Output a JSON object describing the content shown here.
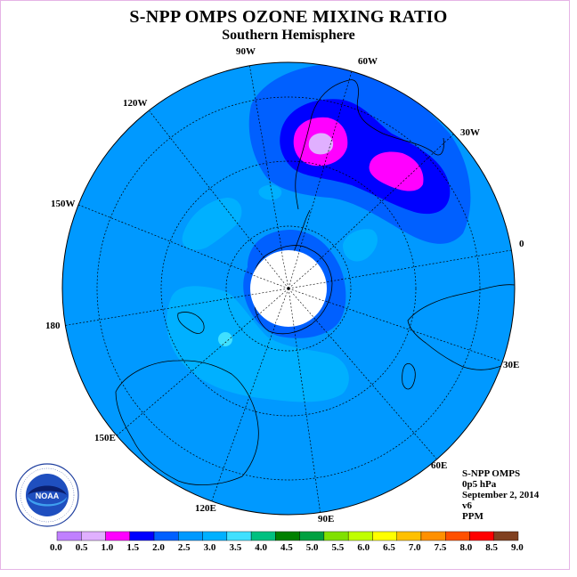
{
  "title": "S-NPP OMPS OZONE MIXING RATIO",
  "subtitle": "Southern Hemisphere",
  "longitude_labels": {
    "lon_90w": "90W",
    "lon_60w": "60W",
    "lon_30w": "30W",
    "lon_0": "0",
    "lon_30e": "30E",
    "lon_60e": "60E",
    "lon_90e": "90E",
    "lon_120e": "120E",
    "lon_150e": "150E",
    "lon_180": "180",
    "lon_150w": "150W",
    "lon_120w": "120W"
  },
  "info": {
    "instrument": "S-NPP OMPS",
    "level": "0p5 hPa",
    "date": "September 2, 2014",
    "version": "v6",
    "units": "PPM"
  },
  "logo": {
    "text": "NOAA",
    "ring_text": "NATIONAL OCEANIC AND ATMOSPHERIC ADMINISTRATION · U.S. DEPARTMENT OF COMMERCE"
  },
  "colorbar": {
    "labels": [
      "0.0",
      "0.5",
      "1.0",
      "1.5",
      "2.0",
      "2.5",
      "3.0",
      "3.5",
      "4.0",
      "4.5",
      "5.0",
      "5.5",
      "6.0",
      "6.5",
      "7.0",
      "7.5",
      "8.0",
      "8.5",
      "9.0"
    ],
    "colors": [
      "#c080ff",
      "#e0b0ff",
      "#ff00ff",
      "#0000ff",
      "#0060ff",
      "#0099ff",
      "#00b0ff",
      "#40e0ff",
      "#00c080",
      "#008000",
      "#00a040",
      "#80e000",
      "#c0ff00",
      "#ffff00",
      "#ffc000",
      "#ff9000",
      "#ff5000",
      "#ff0000",
      "#804020"
    ]
  },
  "colors": {
    "background": "#0099ff",
    "ring_dark": "#0060ff",
    "max_dark": "#0000ff",
    "max_mag": "#ff00ff",
    "max_light": "#e0b0ff",
    "low_light": "#00b0ff"
  }
}
